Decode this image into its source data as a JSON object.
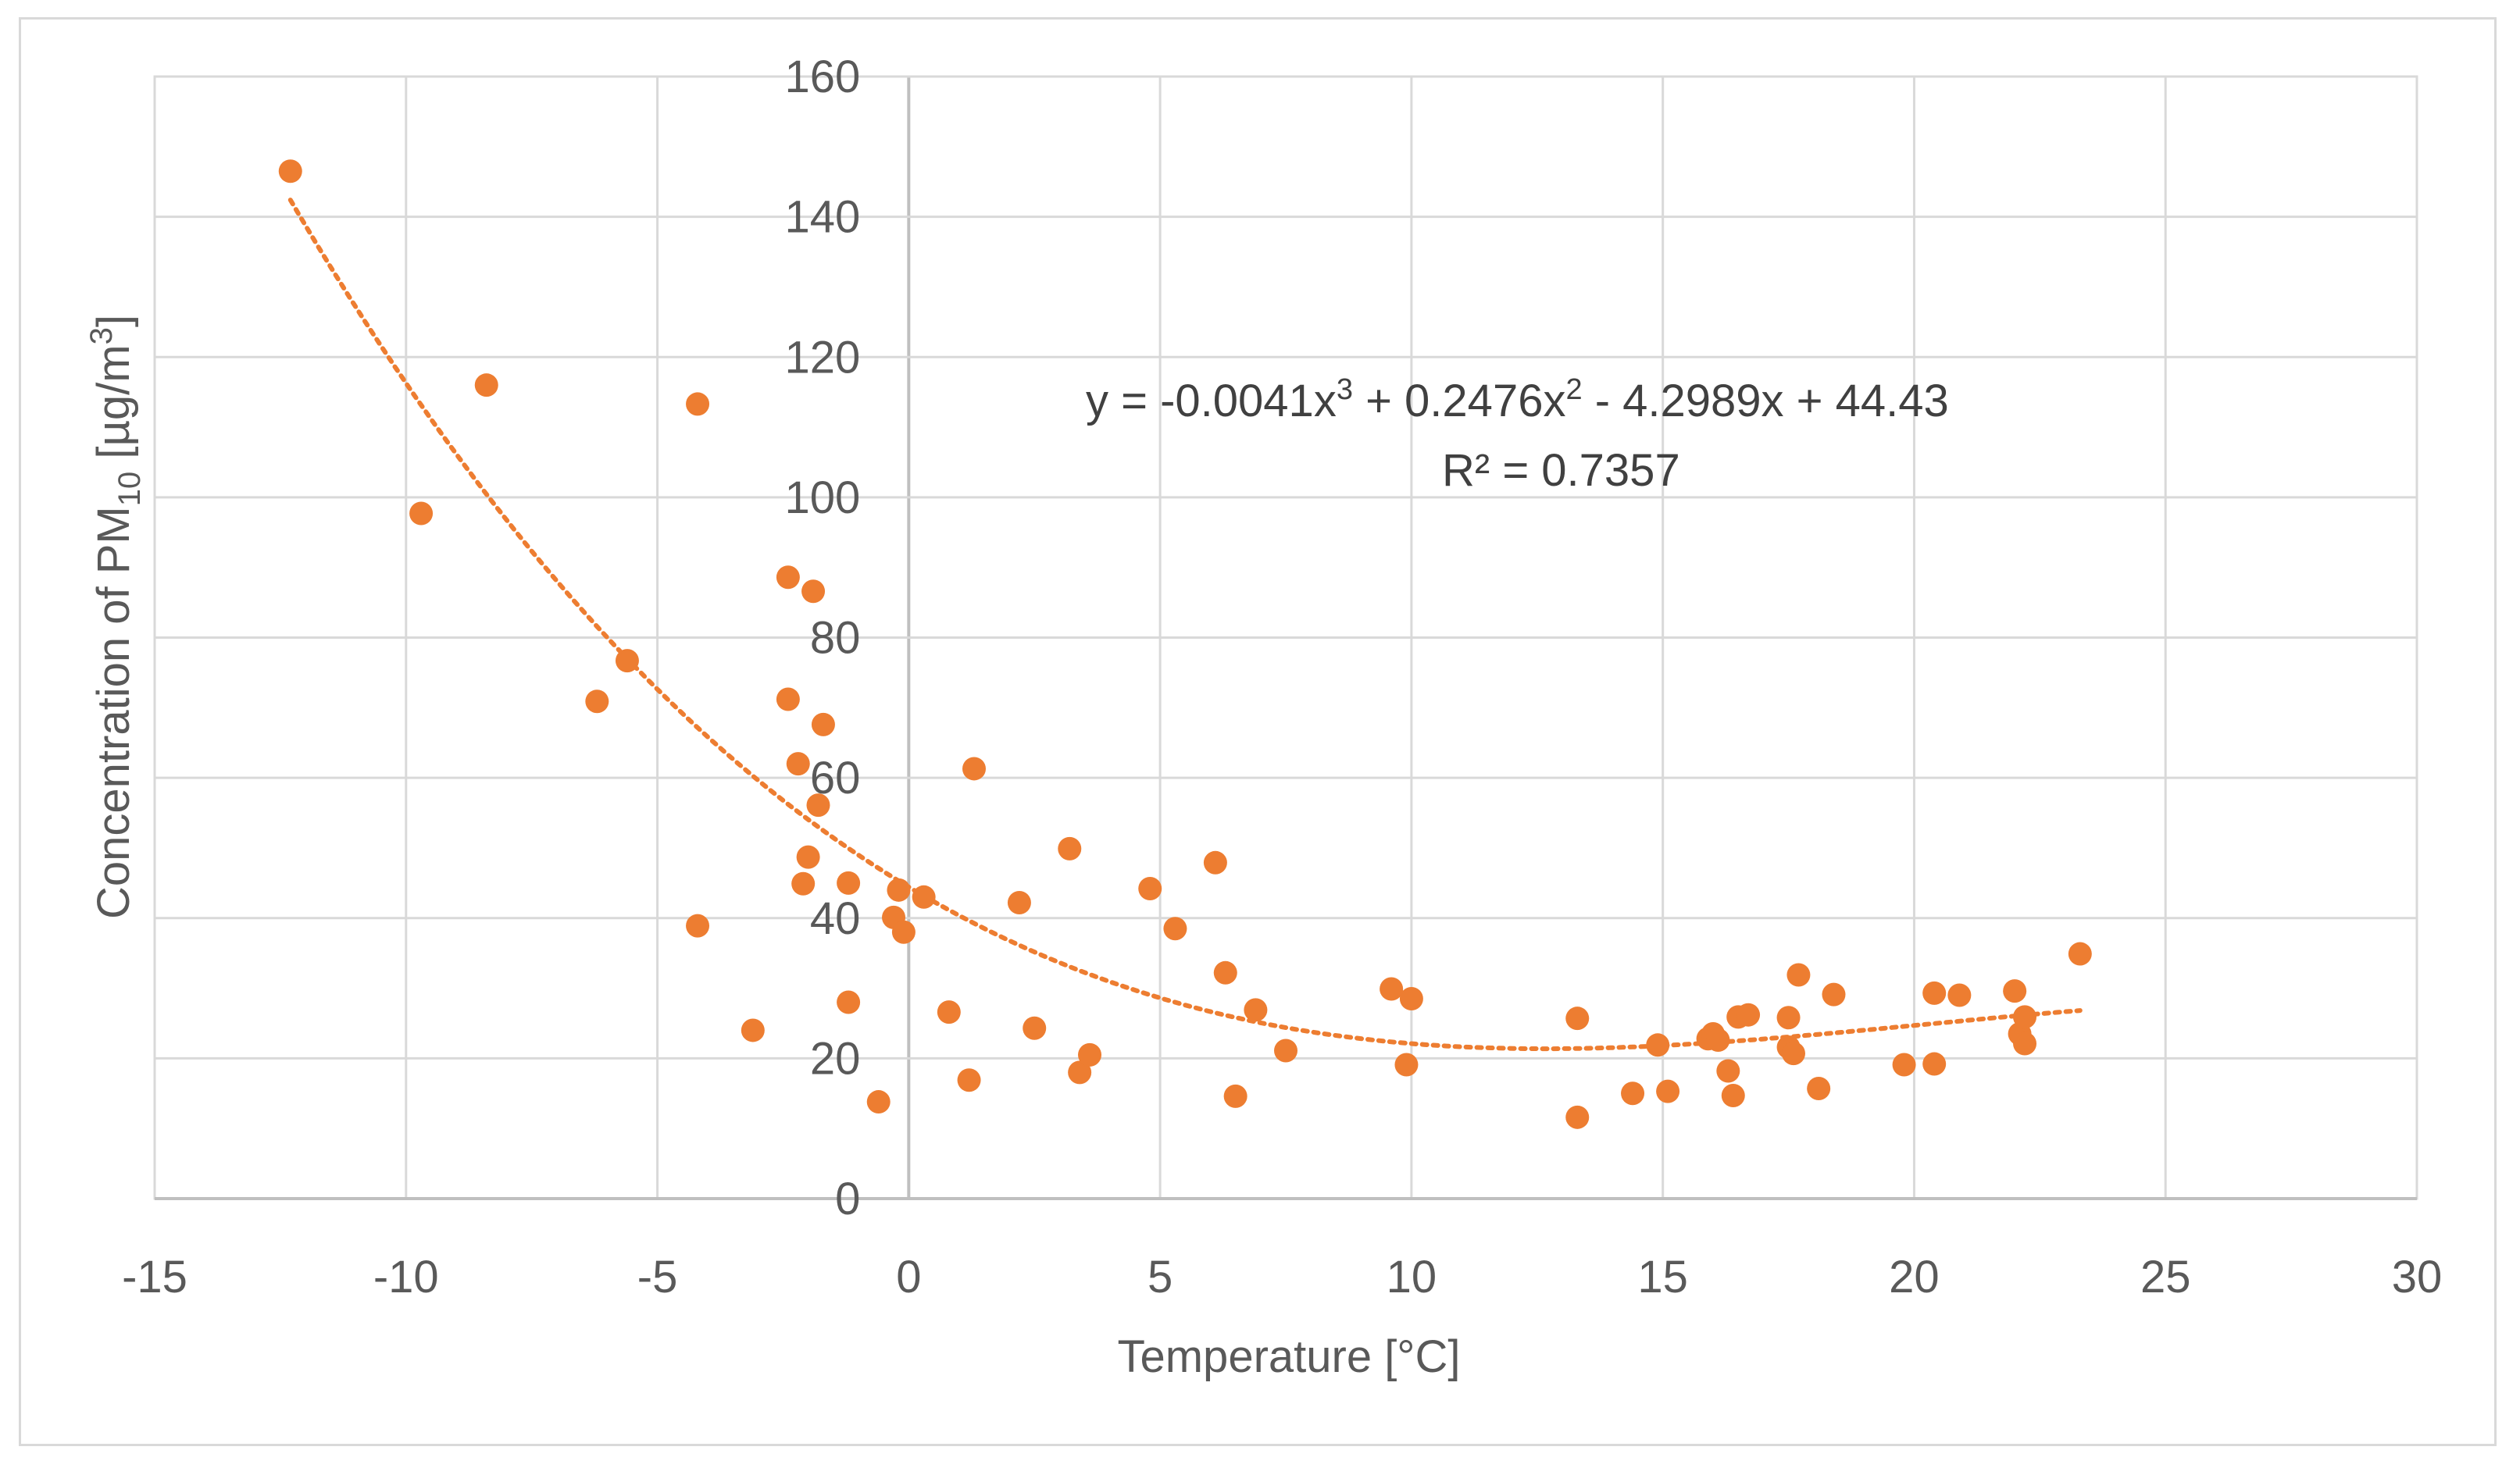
{
  "chart_data": {
    "type": "scatter",
    "title": "",
    "xlabel": "Temperature [°C]",
    "ylabel": {
      "prefix": "Concentration of PM",
      "sub": "10",
      "middle": " [µg/m",
      "sup": "3",
      "suffix": "]"
    },
    "xlim": [
      -15,
      30
    ],
    "ylim": [
      0,
      160
    ],
    "xticks": [
      -15,
      -10,
      -5,
      0,
      5,
      10,
      15,
      20,
      25,
      30
    ],
    "yticks": [
      0,
      20,
      40,
      60,
      80,
      100,
      120,
      140,
      160
    ],
    "grid": true,
    "point_color": "#ed7d31",
    "gridline_color": "#d9d9d9",
    "axis_color": "#bfbfbf",
    "points": [
      [
        -12.3,
        146.5
      ],
      [
        -9.7,
        97.7
      ],
      [
        -8.4,
        116.0
      ],
      [
        -6.2,
        70.9
      ],
      [
        -5.6,
        76.7
      ],
      [
        -4.2,
        113.3
      ],
      [
        -4.2,
        38.9
      ],
      [
        -3.1,
        24.0
      ],
      [
        -2.4,
        88.6
      ],
      [
        -2.4,
        71.2
      ],
      [
        -2.2,
        62.0
      ],
      [
        -2.1,
        44.9
      ],
      [
        -2.0,
        48.7
      ],
      [
        -1.9,
        86.6
      ],
      [
        -1.8,
        56.1
      ],
      [
        -1.7,
        67.6
      ],
      [
        -1.2,
        28.0
      ],
      [
        -1.2,
        45.0
      ],
      [
        -0.6,
        13.8
      ],
      [
        -0.3,
        40.1
      ],
      [
        -0.2,
        44.0
      ],
      [
        -0.1,
        38.0
      ],
      [
        0.3,
        43.0
      ],
      [
        0.8,
        26.6
      ],
      [
        1.2,
        16.9
      ],
      [
        1.3,
        61.3
      ],
      [
        2.2,
        42.2
      ],
      [
        2.5,
        24.3
      ],
      [
        3.2,
        49.9
      ],
      [
        3.4,
        18.0
      ],
      [
        3.6,
        20.5
      ],
      [
        4.8,
        44.2
      ],
      [
        5.3,
        38.5
      ],
      [
        6.1,
        47.9
      ],
      [
        6.3,
        32.2
      ],
      [
        6.5,
        14.6
      ],
      [
        6.9,
        26.9
      ],
      [
        7.5,
        21.1
      ],
      [
        9.6,
        29.9
      ],
      [
        9.9,
        19.1
      ],
      [
        10.0,
        28.5
      ],
      [
        13.3,
        25.7
      ],
      [
        13.3,
        11.6
      ],
      [
        14.4,
        15.0
      ],
      [
        14.9,
        21.9
      ],
      [
        15.1,
        15.3
      ],
      [
        15.9,
        22.8
      ],
      [
        16.0,
        23.5
      ],
      [
        16.1,
        22.6
      ],
      [
        16.3,
        18.2
      ],
      [
        16.4,
        14.7
      ],
      [
        16.5,
        25.9
      ],
      [
        16.7,
        26.2
      ],
      [
        17.5,
        25.8
      ],
      [
        17.5,
        21.6
      ],
      [
        17.6,
        20.7
      ],
      [
        17.7,
        31.9
      ],
      [
        18.1,
        15.7
      ],
      [
        18.4,
        29.1
      ],
      [
        19.8,
        19.1
      ],
      [
        20.4,
        29.3
      ],
      [
        20.4,
        19.2
      ],
      [
        20.9,
        29.0
      ],
      [
        22.0,
        29.6
      ],
      [
        22.1,
        23.5
      ],
      [
        22.2,
        25.9
      ],
      [
        22.2,
        22.1
      ],
      [
        23.3,
        34.9
      ]
    ],
    "trendline": {
      "type": "polynomial",
      "order": 3,
      "coefficients": {
        "a3": -0.0041,
        "a2": 0.2476,
        "a1": -4.2989,
        "a0": 44.43
      },
      "x_range": [
        -12.3,
        23.3
      ],
      "color": "#ed7d31",
      "equation": {
        "p1": "y = -0.0041x",
        "s1": "3",
        "p2": " + 0.2476x",
        "s2": "2",
        "p3": " - 4.2989x + 44.43"
      },
      "r_squared": "R² = 0.7357"
    }
  }
}
